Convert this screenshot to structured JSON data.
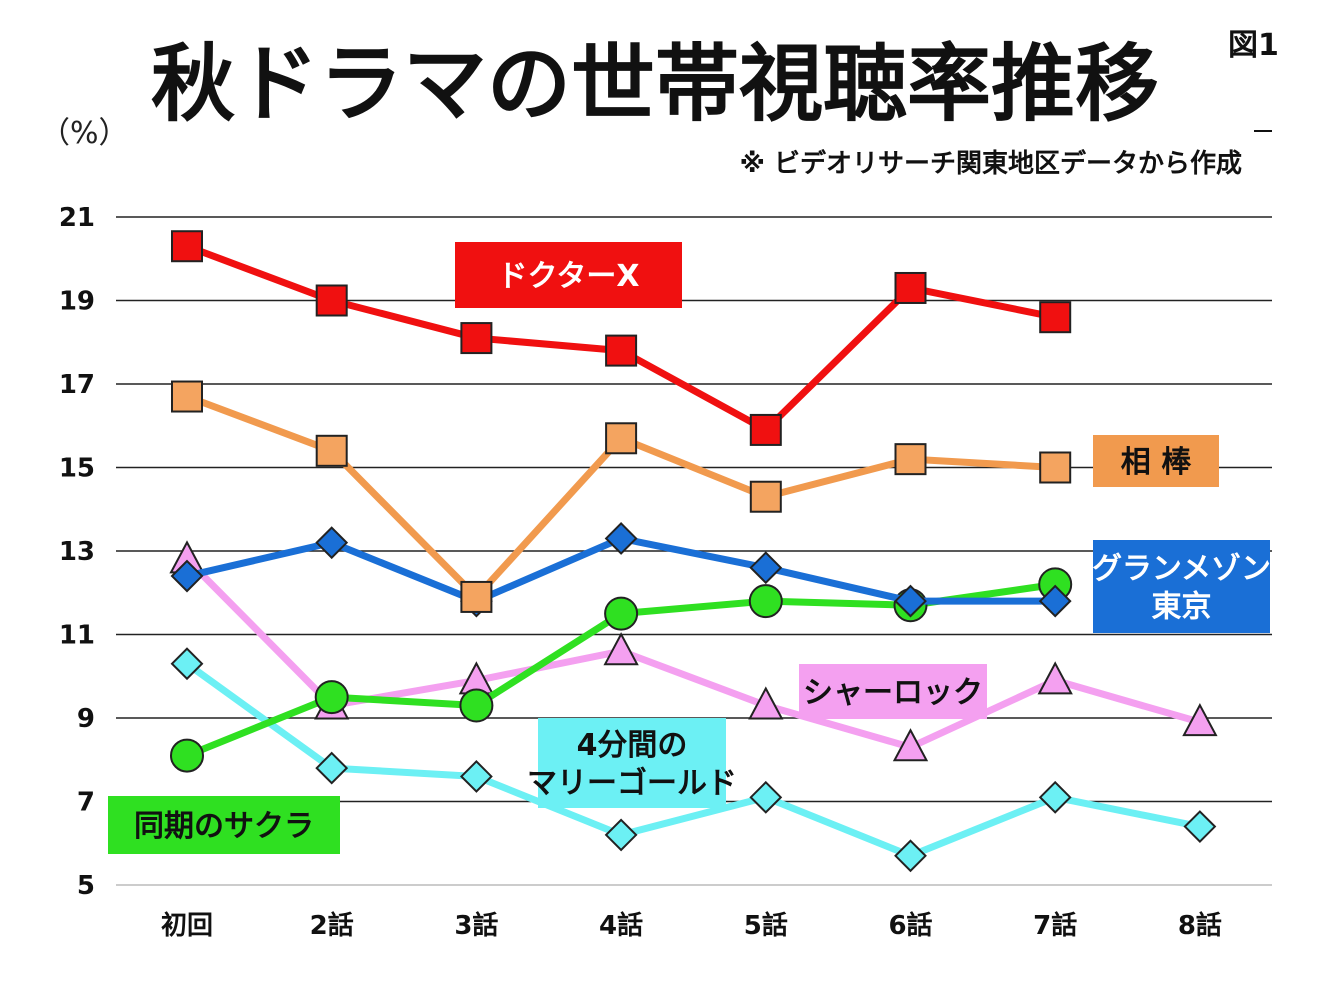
{
  "chart_data": {
    "type": "line",
    "title": "秋ドラマの世帯視聴率推移",
    "figure_label": "図1",
    "ylabel": "（%）",
    "note": "※ ビデオリサーチ関東地区データから作成",
    "categories": [
      "初回",
      "2話",
      "3話",
      "4話",
      "5話",
      "6話",
      "7話",
      "8話"
    ],
    "y_ticks": [
      5,
      7,
      9,
      11,
      13,
      15,
      17,
      19,
      21
    ],
    "ylim": [
      5,
      21
    ],
    "grid": true,
    "series": [
      {
        "name": "ドクターX",
        "color": "#f01010",
        "label_text_color": "#ffffff",
        "marker": "square",
        "marker_fill": "#f01010",
        "values": [
          20.3,
          19.0,
          18.1,
          17.8,
          15.9,
          19.3,
          18.6,
          null
        ]
      },
      {
        "name": "相 棒",
        "color": "#f19a4e",
        "label_text_color": "#111111",
        "marker": "square",
        "marker_fill": "#f4a460",
        "values": [
          16.7,
          15.4,
          11.9,
          15.7,
          14.3,
          15.2,
          15.0,
          null
        ]
      },
      {
        "name": "グランメゾン 東京",
        "color": "#1a6fd6",
        "label_text_color": "#ffffff",
        "marker": "diamond",
        "marker_fill": "#1a6fd6",
        "values": [
          12.4,
          13.2,
          11.8,
          13.3,
          12.6,
          11.8,
          11.8,
          null
        ]
      },
      {
        "name": "同期のサクラ",
        "color": "#2fe021",
        "label_text_color": "#111111",
        "marker": "circle",
        "marker_fill": "#2fe021",
        "values": [
          8.1,
          9.5,
          9.3,
          11.5,
          11.8,
          11.7,
          12.2,
          null
        ]
      },
      {
        "name": "シャーロック",
        "color": "#f4a0f0",
        "label_text_color": "#111111",
        "marker": "triangle",
        "marker_fill": "#f4a0f0",
        "values": [
          12.8,
          9.3,
          9.9,
          10.6,
          9.3,
          8.3,
          9.9,
          8.9
        ]
      },
      {
        "name": "4分間の マリーゴールド",
        "color": "#6cf0f4",
        "label_text_color": "#111111",
        "marker": "diamond",
        "marker_fill": "#6cf0f4",
        "values": [
          10.3,
          7.8,
          7.6,
          6.2,
          7.1,
          5.7,
          7.1,
          6.4
        ]
      }
    ]
  }
}
